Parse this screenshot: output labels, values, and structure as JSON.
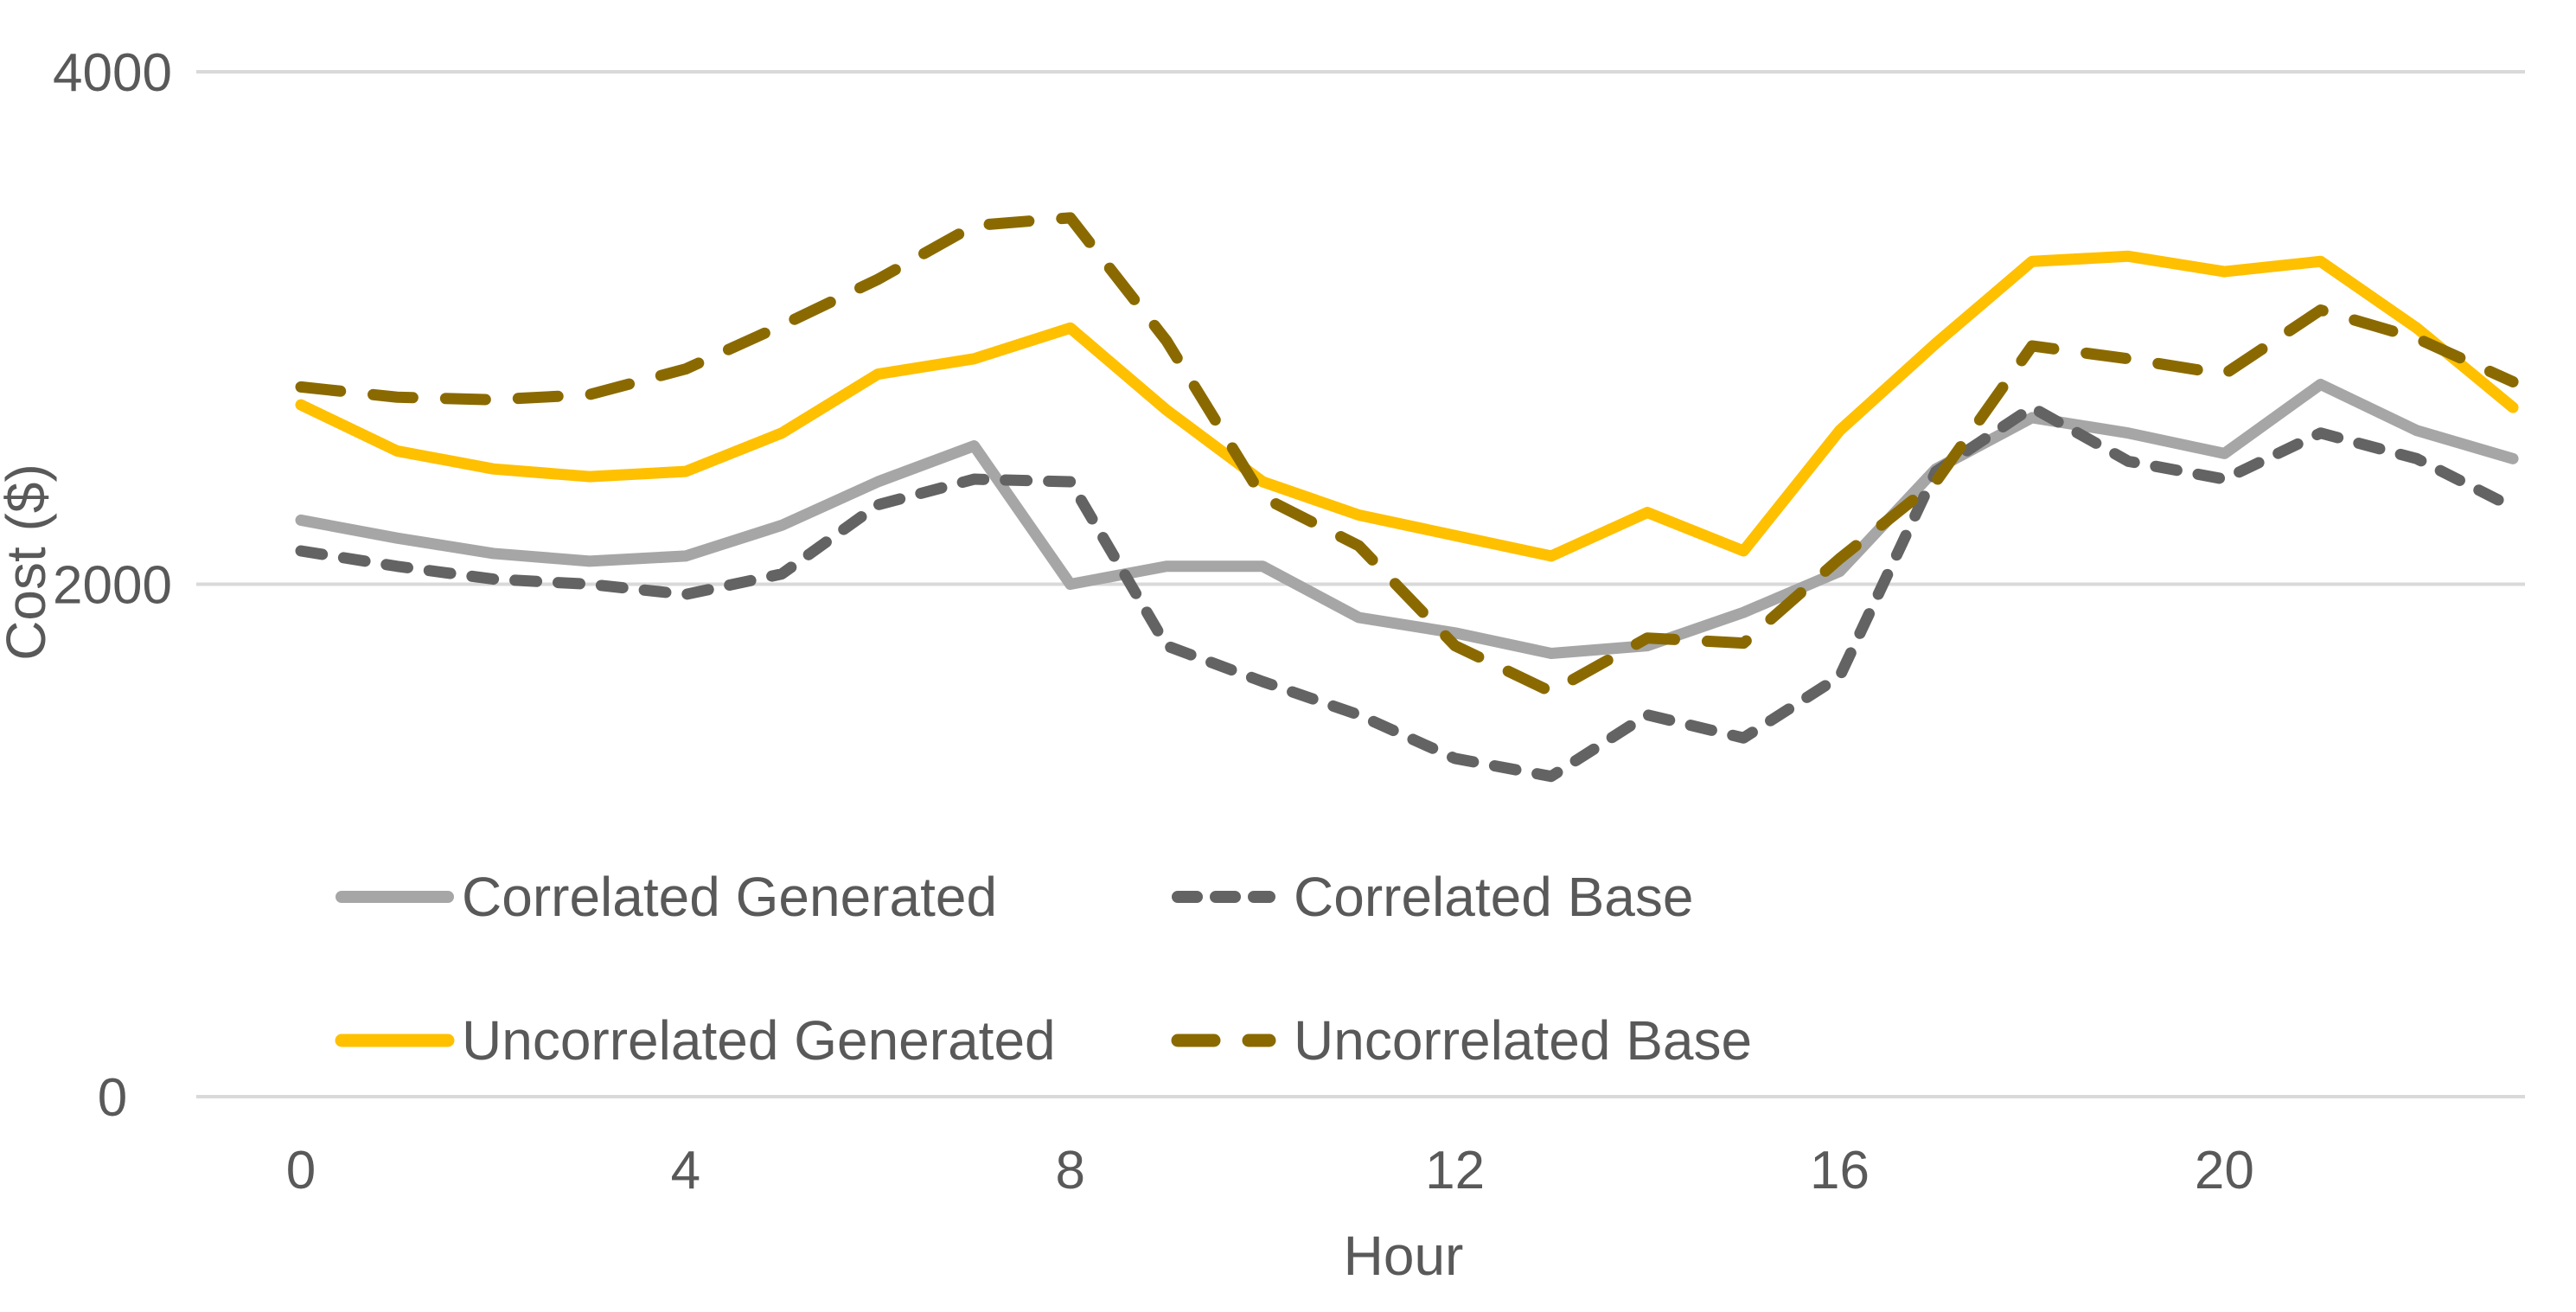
{
  "chart_data": {
    "type": "line",
    "title": "",
    "xlabel": "Hour",
    "ylabel": "Cost ($)",
    "x": [
      0,
      1,
      2,
      3,
      4,
      5,
      6,
      7,
      8,
      9,
      10,
      11,
      12,
      13,
      14,
      15,
      16,
      17,
      18,
      19,
      20,
      21,
      22,
      23
    ],
    "xticks": [
      0,
      4,
      8,
      12,
      16,
      20
    ],
    "yticks": [
      0,
      2000,
      4000
    ],
    "xlim": [
      0,
      23
    ],
    "ylim": [
      0,
      4000
    ],
    "grid": "horizontal-only",
    "legend_position": "inside bottom-left, two rows",
    "series": [
      {
        "name": "Correlated Generated",
        "style": "solid",
        "color": "#A6A6A6",
        "values": [
          2250,
          2180,
          2120,
          2090,
          2110,
          2230,
          2400,
          2540,
          2000,
          2070,
          2070,
          1870,
          1810,
          1730,
          1760,
          1890,
          2050,
          2450,
          2650,
          2590,
          2510,
          2780,
          2600,
          2490
        ]
      },
      {
        "name": "Correlated Base",
        "style": "dashed",
        "color": "#636363",
        "values": [
          2130,
          2070,
          2020,
          2000,
          1960,
          2040,
          2310,
          2410,
          2400,
          1760,
          1620,
          1490,
          1320,
          1250,
          1490,
          1400,
          1640,
          2440,
          2690,
          2480,
          2410,
          2590,
          2490,
          2300
        ]
      },
      {
        "name": "Uncorrelated Generated",
        "style": "solid",
        "color": "#FFC000",
        "values": [
          2700,
          2520,
          2450,
          2420,
          2440,
          2590,
          2820,
          2880,
          3000,
          2680,
          2400,
          2270,
          2190,
          2110,
          2280,
          2130,
          2600,
          2940,
          3260,
          3280,
          3220,
          3260,
          3000,
          2690
        ]
      },
      {
        "name": "Uncorrelated Base",
        "style": "dashed",
        "color": "#8A6A00",
        "values": [
          2770,
          2730,
          2720,
          2740,
          2840,
          3010,
          3190,
          3400,
          3430,
          2950,
          2340,
          2150,
          1760,
          1580,
          1790,
          1770,
          2100,
          2400,
          2930,
          2880,
          2820,
          3070,
          2960,
          2790
        ]
      }
    ]
  },
  "colors": {
    "gridline": "#D9D9D9",
    "axis_text": "#595959",
    "background": "#FFFFFF"
  }
}
